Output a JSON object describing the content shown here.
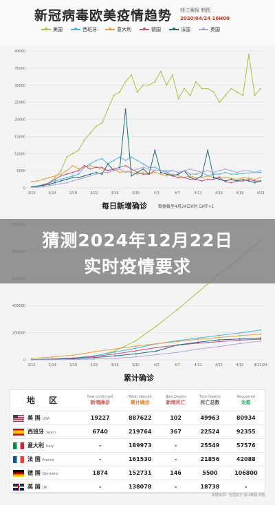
{
  "header": {
    "title": "新冠病毒欧美疫情趋势",
    "publisher": "钱江晚报 制图",
    "date": "2020/04/24 16H00"
  },
  "colors": {
    "us": "#a9c23f",
    "spain": "#4ab7e0",
    "italy": "#e8a23a",
    "germany": "#c84f8a",
    "france": "#1f6e7a",
    "uk": "#b0a5d9"
  },
  "legend": [
    {
      "name": "美国",
      "color": "#a9c23f"
    },
    {
      "name": "西班牙",
      "color": "#4ab7e0"
    },
    {
      "name": "意大利",
      "color": "#e8a23a"
    },
    {
      "name": "德国",
      "color": "#c84f8a"
    },
    {
      "name": "法国",
      "color": "#1f6e7a"
    },
    {
      "name": "英国",
      "color": "#b0a5d9"
    }
  ],
  "overlay": {
    "line1": "猜测2024年12月22日",
    "line2": "实时疫情要求"
  },
  "chart_data": [
    {
      "type": "line",
      "title": "每日新增确诊",
      "subtitle": "数据截至4月24日0时 GMT+1",
      "yticks": [
        "40000",
        "35000",
        "30000",
        "25000",
        "20000",
        "15000",
        "10000",
        "5000",
        "0"
      ],
      "ylim": [
        0,
        40000
      ],
      "xticks": [
        "3/10",
        "3/14",
        "3/18",
        "3/22",
        "3/26",
        "3/30",
        "4/3",
        "4/7",
        "4/11",
        "4/15",
        "4/19",
        "4/23"
      ],
      "series": [
        {
          "name": "美国",
          "values": [
            200,
            400,
            700,
            1500,
            3000,
            5000,
            9000,
            10000,
            11000,
            14000,
            16000,
            18000,
            19000,
            23000,
            27000,
            28000,
            31000,
            33000,
            28000,
            30000,
            30000,
            31000,
            34000,
            30000,
            33000,
            26000,
            29000,
            27000,
            31000,
            29000,
            29000,
            28000,
            25000,
            27000,
            29000,
            28000,
            27000,
            39000,
            27000,
            29000
          ]
        },
        {
          "name": "西班牙",
          "values": [
            300,
            500,
            1000,
            1400,
            2000,
            2500,
            3000,
            3500,
            4000,
            6000,
            7000,
            8000,
            8500,
            7000,
            8000,
            9000,
            8000,
            9000,
            8000,
            7000,
            6000,
            6000,
            5000,
            5000,
            5000,
            4500,
            5000,
            4000,
            4000,
            4500,
            3500,
            4000,
            4000,
            4500,
            4000,
            4000,
            4200,
            4300,
            4500,
            4500
          ]
        },
        {
          "name": "意大利",
          "values": [
            1800,
            2000,
            2500,
            3000,
            3500,
            4000,
            5000,
            6500,
            5500,
            6000,
            6500,
            6000,
            5500,
            5000,
            5500,
            4500,
            4700,
            4500,
            4000,
            4500,
            4000,
            4500,
            4000,
            3500,
            4000,
            3500,
            3000,
            3500,
            3000,
            3000,
            3500,
            3000,
            3200,
            3000,
            2800,
            2500,
            3000,
            2800,
            2500,
            3000
          ]
        },
        {
          "name": "德国",
          "values": [
            200,
            500,
            800,
            1500,
            2500,
            3500,
            4000,
            4500,
            5000,
            6500,
            5500,
            6000,
            6000,
            5000,
            5500,
            6000,
            6500,
            5500,
            4500,
            4000,
            4000,
            5000,
            5000,
            4500,
            3500,
            3000,
            3000,
            2500,
            2500,
            2000,
            2500,
            2500,
            3000,
            1800,
            1500,
            2000,
            2000,
            2500,
            2000,
            2000
          ]
        },
        {
          "name": "法国",
          "values": [
            300,
            500,
            700,
            1000,
            1500,
            2000,
            2500,
            3000,
            3000,
            3500,
            4000,
            4500,
            4000,
            7000,
            5000,
            5500,
            23000,
            3500,
            4500,
            5500,
            4000,
            11000,
            4500,
            4000,
            3500,
            4000,
            5000,
            3000,
            2500,
            3500,
            11000,
            3000,
            2500,
            2000,
            2500,
            2000,
            2500,
            2000,
            1500,
            2000
          ]
        },
        {
          "name": "英国",
          "values": [
            100,
            200,
            300,
            600,
            900,
            1200,
            1500,
            2000,
            2500,
            3000,
            3500,
            4000,
            4500,
            4500,
            5000,
            5500,
            4500,
            5000,
            5500,
            6000,
            5500,
            5000,
            5000,
            4500,
            5000,
            4500,
            5000,
            5500,
            5000,
            4500,
            5000,
            4500,
            5000,
            5500,
            5000,
            4500,
            5000,
            5000,
            4500,
            5000
          ]
        }
      ]
    },
    {
      "type": "line",
      "title": "累计确诊",
      "yticks": [
        "1000000",
        "800000",
        "600000",
        "400000",
        "200000",
        "0"
      ],
      "ylim": [
        0,
        1000000
      ],
      "xticks": [
        "3/10",
        "3/14",
        "3/18",
        "3/22",
        "3/26",
        "3/30",
        "4/3",
        "4/7",
        "4/11",
        "4/15",
        "4/19",
        "4/23/24"
      ],
      "series": [
        {
          "name": "美国",
          "values": [
            1000,
            2500,
            7000,
            25000,
            65000,
            140000,
            250000,
            370000,
            500000,
            630000,
            750000,
            880000
          ]
        },
        {
          "name": "西班牙",
          "values": [
            2000,
            6000,
            14000,
            29000,
            57000,
            86000,
            118000,
            141000,
            161000,
            180000,
            198000,
            220000
          ]
        },
        {
          "name": "意大利",
          "values": [
            10000,
            21000,
            35000,
            59000,
            80000,
            101000,
            119000,
            135000,
            152000,
            165000,
            178000,
            189000
          ]
        },
        {
          "name": "德国",
          "values": [
            1500,
            4500,
            12000,
            25000,
            43000,
            66000,
            91000,
            108000,
            123000,
            134000,
            145000,
            152000
          ]
        },
        {
          "name": "法国",
          "values": [
            1800,
            4500,
            9000,
            16000,
            29000,
            44000,
            65000,
            109000,
            130000,
            147000,
            154000,
            161000
          ]
        },
        {
          "name": "英国",
          "values": [
            400,
            1100,
            2600,
            5700,
            11000,
            22000,
            38000,
            55000,
            79000,
            98000,
            120000,
            138000
          ]
        }
      ]
    },
    {
      "type": "table",
      "headers": {
        "region": "地 区",
        "new_confirmed_en": "New confirmed",
        "new_confirmed_zh": "新增确诊",
        "total_infected_en": "Total infected",
        "total_infected_zh": "累计确诊",
        "new_deaths_en": "New Deaths",
        "new_deaths_zh": "新增死亡",
        "total_deaths_en": "Total Deaths",
        "total_deaths_zh": "死亡总数",
        "recovered_en": "Recovered",
        "recovered_zh": "治愈"
      },
      "rows": [
        {
          "cn": "美 国",
          "en": "USA",
          "flag": "usa",
          "new_confirmed": "19227",
          "total_infected": "887622",
          "new_deaths": "102",
          "total_deaths": "49963",
          "recovered": "80934"
        },
        {
          "cn": "西班牙",
          "en": "Spain",
          "flag": "spain",
          "new_confirmed": "6740",
          "total_infected": "219764",
          "new_deaths": "367",
          "total_deaths": "22524",
          "recovered": "92355"
        },
        {
          "cn": "意大利",
          "en": "Italy",
          "flag": "italy",
          "new_confirmed": "-",
          "total_infected": "189973",
          "new_deaths": "-",
          "total_deaths": "25549",
          "recovered": "57576"
        },
        {
          "cn": "法 国",
          "en": "France",
          "flag": "france",
          "new_confirmed": "-",
          "total_infected": "161530",
          "new_deaths": "-",
          "total_deaths": "21856",
          "recovered": "42088"
        },
        {
          "cn": "德 国",
          "en": "Germany",
          "flag": "germany",
          "new_confirmed": "1874",
          "total_infected": "152731",
          "new_deaths": "146",
          "total_deaths": "5500",
          "recovered": "106800"
        },
        {
          "cn": "英 国",
          "en": "UK",
          "flag": "uk",
          "new_confirmed": "-",
          "total_infected": "138078",
          "new_deaths": "-",
          "total_deaths": "18738",
          "recovered": "-"
        }
      ]
    }
  ],
  "footer": "数据来源：各国官方 钱江晚报 制图"
}
